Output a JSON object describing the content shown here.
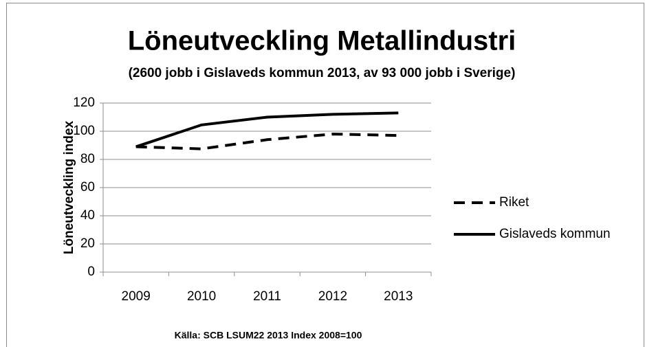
{
  "chart_data": {
    "type": "line",
    "title": "Löneutveckling Metallindustri",
    "subtitle": "(2600  jobb i Gislaveds kommun 2013, av 93 000 jobb i Sverige)",
    "y_label": "Löneutveckling index",
    "source": "Källa: SCB LSUM22 2013 Index 2008=100",
    "categories": [
      "2009",
      "2010",
      "2011",
      "2012",
      "2013"
    ],
    "series": [
      {
        "name": "Riket",
        "color": "#000000",
        "dash": "dashed",
        "values": [
          89,
          87.5,
          94,
          98,
          97
        ]
      },
      {
        "name": "Gislaveds kommun",
        "color": "#000000",
        "dash": "solid",
        "values": [
          89,
          104.5,
          110,
          112,
          113
        ]
      }
    ],
    "ylim": [
      0,
      120
    ],
    "yticks": [
      0,
      20,
      40,
      60,
      80,
      100,
      120
    ],
    "grid": true,
    "legend": "right"
  }
}
